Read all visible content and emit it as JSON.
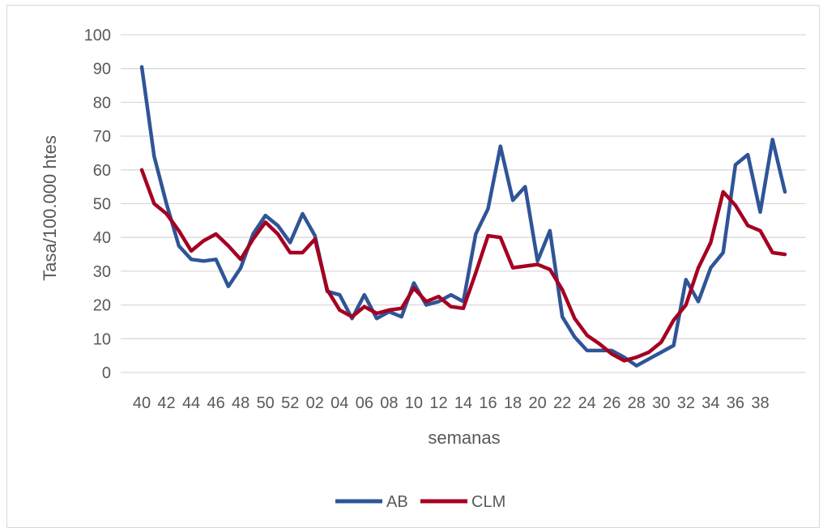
{
  "chart_data": {
    "type": "line",
    "title": "",
    "xlabel": "semanas",
    "ylabel": "Tasa/100.000 htes",
    "ylim": [
      0,
      100
    ],
    "yticks": [
      0,
      10,
      20,
      30,
      40,
      50,
      60,
      70,
      80,
      90,
      100
    ],
    "grid": true,
    "legend_position": "bottom",
    "categories": [
      "40",
      "41",
      "42",
      "43",
      "44",
      "45",
      "46",
      "47",
      "48",
      "49",
      "50",
      "51",
      "52",
      "01",
      "02",
      "03",
      "04",
      "05",
      "06",
      "07",
      "08",
      "09",
      "10",
      "11",
      "12",
      "13",
      "14",
      "15",
      "16",
      "17",
      "18",
      "19",
      "20",
      "21",
      "22",
      "23",
      "24",
      "25",
      "26",
      "27",
      "28",
      "29",
      "30",
      "31",
      "32",
      "33",
      "34",
      "35",
      "36",
      "37",
      "38",
      "39",
      "40"
    ],
    "tick_labels": [
      "40",
      "42",
      "44",
      "46",
      "48",
      "50",
      "52",
      "02",
      "04",
      "06",
      "08",
      "10",
      "12",
      "14",
      "16",
      "18",
      "20",
      "22",
      "24",
      "26",
      "28",
      "30",
      "32",
      "34",
      "36",
      "38"
    ],
    "tick_indices": [
      0,
      2,
      4,
      6,
      8,
      10,
      12,
      14,
      16,
      18,
      20,
      22,
      24,
      26,
      28,
      30,
      32,
      34,
      36,
      38,
      40,
      42,
      44,
      46,
      48,
      50
    ],
    "series": [
      {
        "name": "AB",
        "color": "#2f5597",
        "values": [
          90.5,
          64,
          50,
          37.5,
          33.5,
          33,
          33.5,
          25.5,
          31,
          41,
          46.5,
          43.5,
          38.5,
          47,
          40.5,
          24,
          23,
          16,
          23,
          16,
          18,
          16.5,
          26.5,
          20,
          21,
          23,
          21,
          41,
          48.5,
          67,
          51,
          55,
          33,
          42,
          16.5,
          10.5,
          6.5,
          6.5,
          6.5,
          4.5,
          2,
          4,
          6,
          8,
          27.5,
          21,
          31,
          35.5,
          61.5,
          64.5,
          47.5,
          69,
          53.5
        ]
      },
      {
        "name": "CLM",
        "color": "#a50021",
        "values": [
          60,
          50,
          47,
          42,
          36,
          39,
          41,
          37.5,
          33.5,
          39.5,
          44.5,
          41,
          35.5,
          35.5,
          39.5,
          24.5,
          18.5,
          16.5,
          19.5,
          17.5,
          18.5,
          19,
          25,
          21,
          22.5,
          19.5,
          19,
          29.5,
          40.5,
          40,
          31,
          31.5,
          32,
          30.5,
          24.5,
          16,
          11,
          8.5,
          5.5,
          3.5,
          4.5,
          6,
          9,
          15.5,
          20,
          31,
          38.5,
          53.5,
          49.5,
          43.5,
          42,
          35.5,
          35
        ]
      }
    ]
  }
}
